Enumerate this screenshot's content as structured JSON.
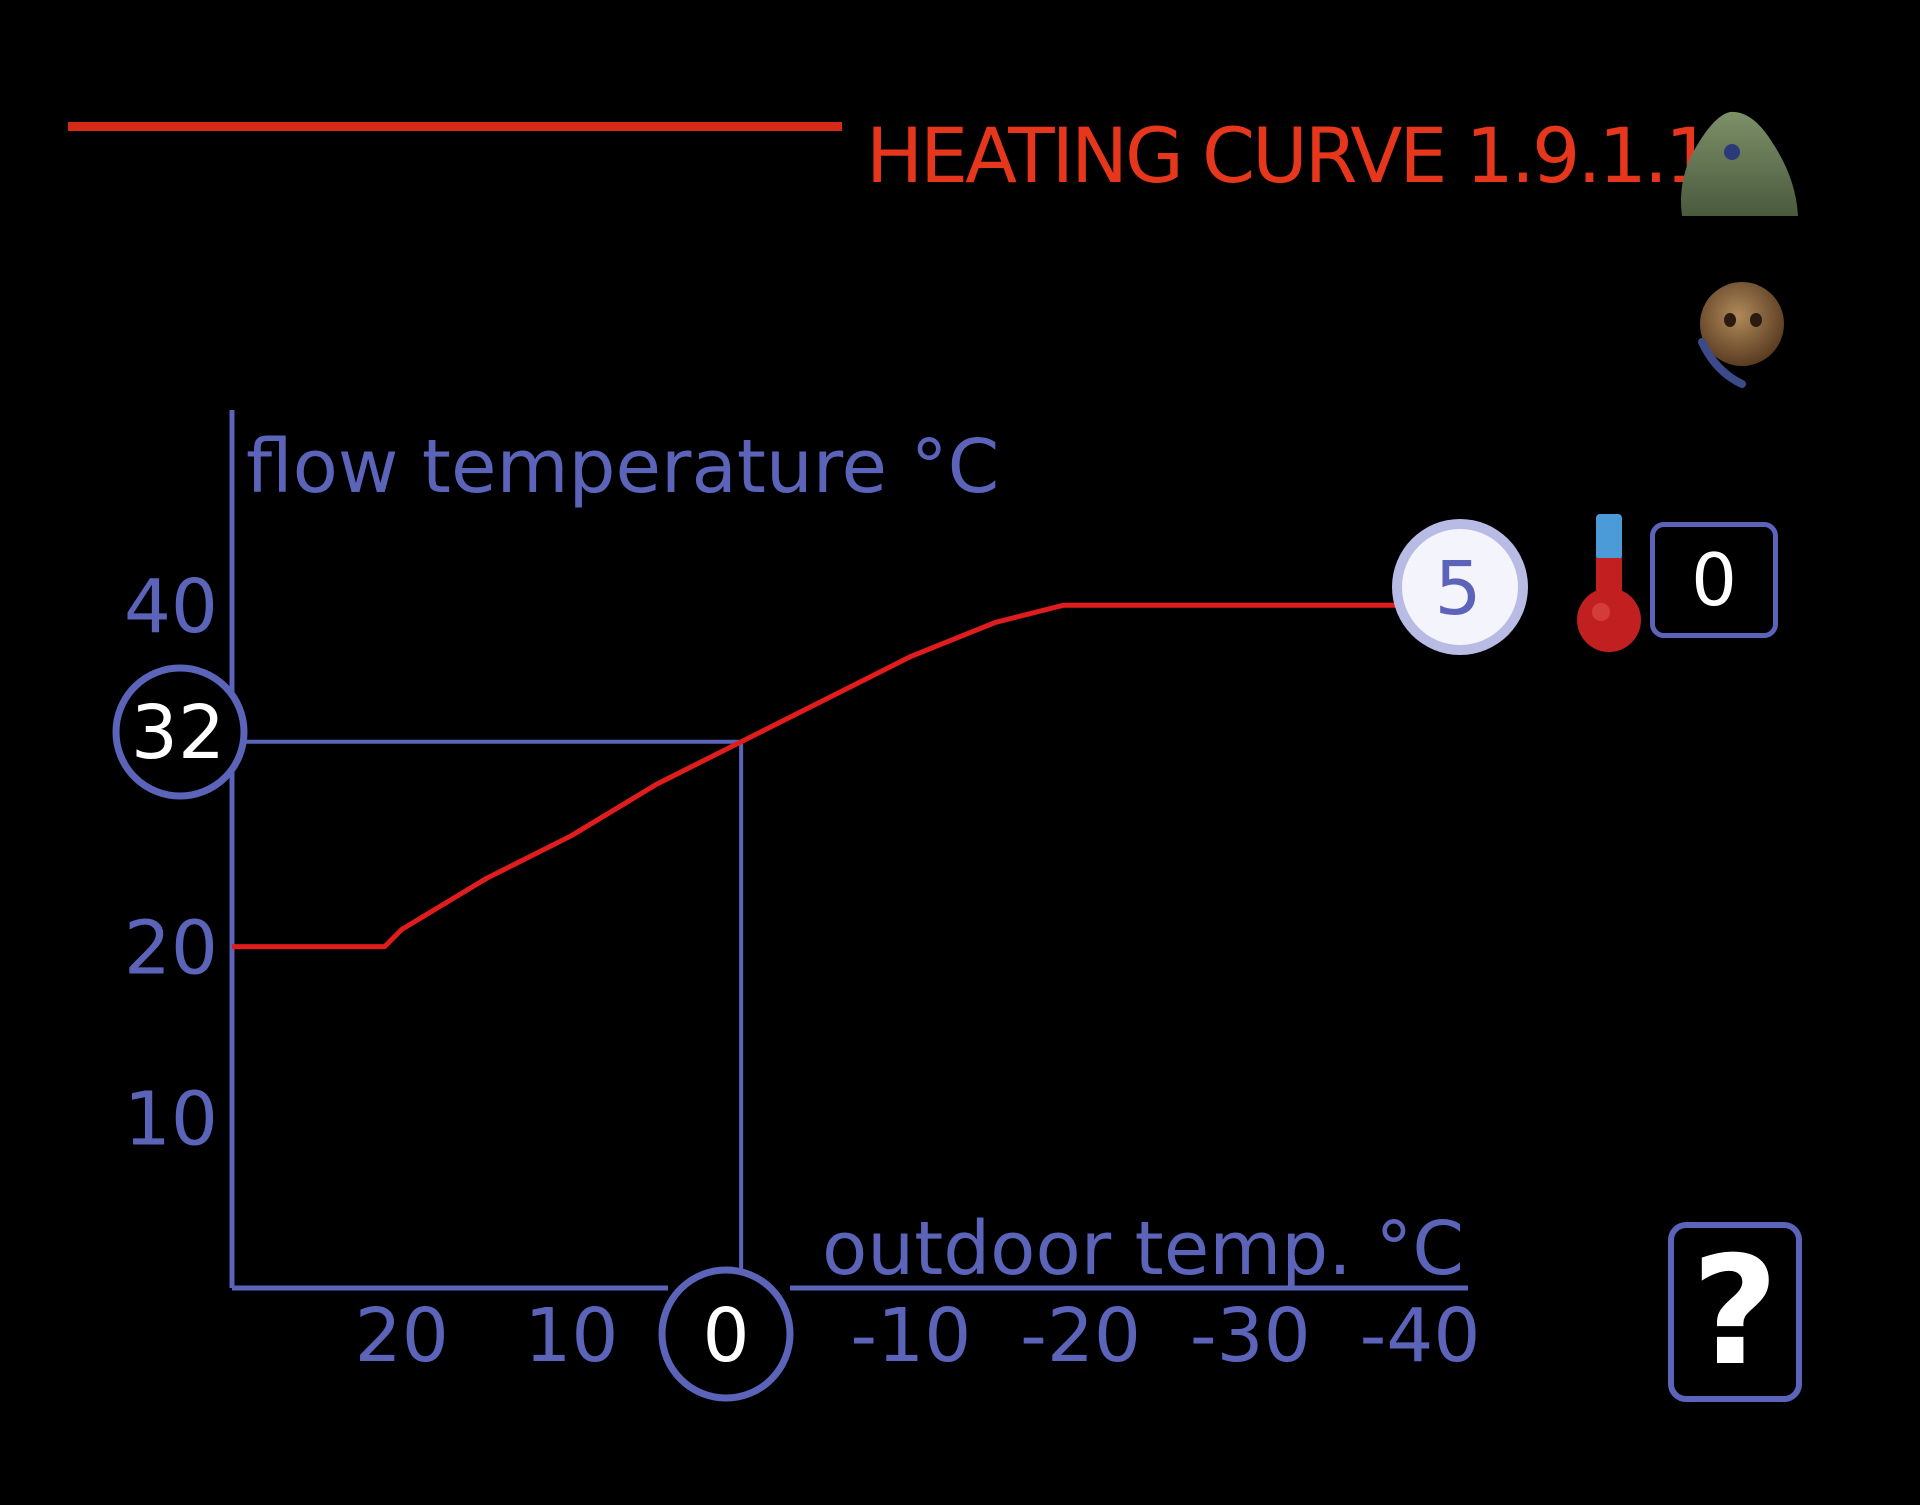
{
  "header": {
    "title": "HEATING CURVE 1.9.1.1"
  },
  "side_icons": [
    "house-icon",
    "person-icon",
    "thermometer-icon",
    "help-icon"
  ],
  "offset": {
    "value": "0"
  },
  "help": {
    "label": "?"
  },
  "colors": {
    "background": "#000000",
    "accent": "#e6361c",
    "axis": "#5c64ba",
    "curve": "#e01c1c",
    "text": "#ffffff"
  },
  "chart_data": {
    "type": "line",
    "ylabel": "flow temperature °C",
    "xlabel": "outdoor temp. °C",
    "x_ticks": [
      "20",
      "10",
      "0",
      "-10",
      "-20",
      "-30",
      "-40"
    ],
    "y_ticks": [
      "40",
      "20",
      "10"
    ],
    "xlim": [
      30,
      -40
    ],
    "ylim": [
      0,
      43
    ],
    "series": [
      {
        "x": [
          30,
          21,
          20,
          15,
          10,
          5,
          0,
          -5,
          -10,
          -15,
          -19,
          -40
        ],
        "y": [
          20,
          20,
          21,
          24,
          26.5,
          29.5,
          32,
          34.5,
          37,
          39,
          40,
          40
        ]
      }
    ],
    "selected_point": {
      "x": "0",
      "y": "32"
    },
    "curve_setting": "5"
  }
}
